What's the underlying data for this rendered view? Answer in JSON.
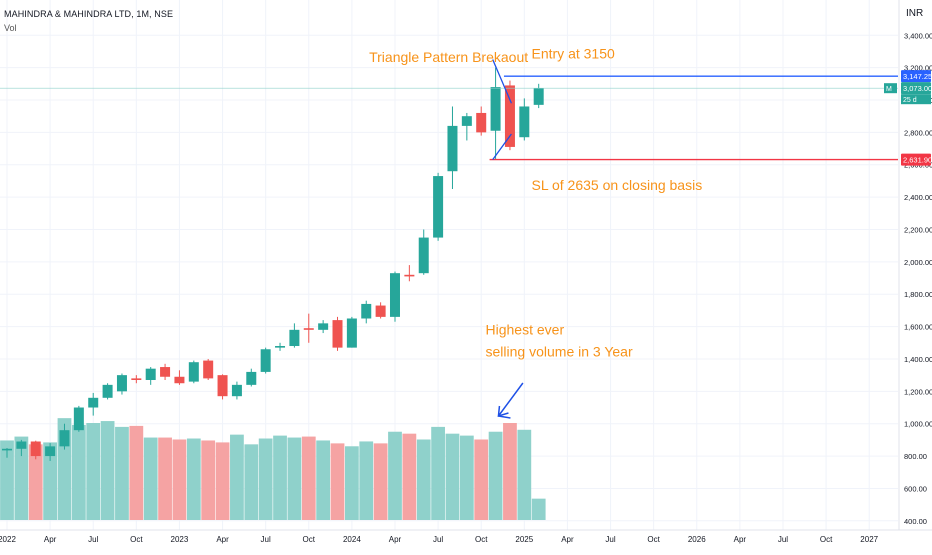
{
  "header": {
    "symbol": "MAHINDRA & MAHINDRA LTD, 1M, NSE",
    "volume_label": "Vol",
    "currency": "INR"
  },
  "colors": {
    "up": "#26a69a",
    "down": "#ef5350",
    "vol_up": "#8fd1cb",
    "vol_down": "#f5a3a3",
    "annotation": "#f7931a",
    "entry_line": "#2962ff",
    "sl_line": "#f23645",
    "pattern_line": "#1e50e6"
  },
  "chart_data": {
    "type": "candlestick",
    "interval": "1M",
    "y_axis": {
      "side": "right",
      "ticks": [
        "3,400.00",
        "3,200.00",
        "3,000.00",
        "2,800.00",
        "2,600.00",
        "2,400.00",
        "2,200.00",
        "2,000.00",
        "1,800.00",
        "1,600.00",
        "1,400.00",
        "1,200.00",
        "1,000.00",
        "800.00",
        "600.00",
        "400.00"
      ],
      "tick_values": [
        3400,
        3200,
        3000,
        2800,
        2600,
        2400,
        2200,
        2000,
        1800,
        1600,
        1400,
        1200,
        1000,
        800,
        600,
        400
      ]
    },
    "x_axis": {
      "labels": [
        "2022",
        "Apr",
        "Jul",
        "Oct",
        "2023",
        "Apr",
        "Jul",
        "Oct",
        "2024",
        "Apr",
        "Jul",
        "Oct",
        "2025",
        "Apr",
        "Jul",
        "Oct",
        "2026",
        "Apr",
        "Jul",
        "Oct",
        "2027"
      ],
      "label_month_index": [
        0,
        3,
        6,
        9,
        12,
        15,
        18,
        21,
        24,
        27,
        30,
        33,
        36,
        39,
        42,
        45,
        48,
        51,
        54,
        57,
        60
      ]
    },
    "candles": [
      {
        "o": 835,
        "h": 850,
        "l": 790,
        "c": 845
      },
      {
        "o": 845,
        "h": 900,
        "l": 800,
        "c": 890
      },
      {
        "o": 890,
        "h": 895,
        "l": 780,
        "c": 800
      },
      {
        "o": 800,
        "h": 880,
        "l": 770,
        "c": 860
      },
      {
        "o": 860,
        "h": 1000,
        "l": 840,
        "c": 960
      },
      {
        "o": 960,
        "h": 1110,
        "l": 950,
        "c": 1100
      },
      {
        "o": 1100,
        "h": 1190,
        "l": 1050,
        "c": 1160
      },
      {
        "o": 1160,
        "h": 1250,
        "l": 1150,
        "c": 1240
      },
      {
        "o": 1200,
        "h": 1310,
        "l": 1180,
        "c": 1300
      },
      {
        "o": 1280,
        "h": 1300,
        "l": 1250,
        "c": 1270
      },
      {
        "o": 1270,
        "h": 1350,
        "l": 1240,
        "c": 1340
      },
      {
        "o": 1350,
        "h": 1370,
        "l": 1270,
        "c": 1290
      },
      {
        "o": 1290,
        "h": 1330,
        "l": 1240,
        "c": 1250
      },
      {
        "o": 1260,
        "h": 1390,
        "l": 1250,
        "c": 1380
      },
      {
        "o": 1390,
        "h": 1400,
        "l": 1270,
        "c": 1280
      },
      {
        "o": 1300,
        "h": 1305,
        "l": 1150,
        "c": 1170
      },
      {
        "o": 1170,
        "h": 1260,
        "l": 1150,
        "c": 1240
      },
      {
        "o": 1240,
        "h": 1340,
        "l": 1230,
        "c": 1320
      },
      {
        "o": 1320,
        "h": 1470,
        "l": 1310,
        "c": 1460
      },
      {
        "o": 1470,
        "h": 1500,
        "l": 1450,
        "c": 1480
      },
      {
        "o": 1480,
        "h": 1620,
        "l": 1470,
        "c": 1580
      },
      {
        "o": 1590,
        "h": 1680,
        "l": 1500,
        "c": 1580
      },
      {
        "o": 1580,
        "h": 1640,
        "l": 1560,
        "c": 1620
      },
      {
        "o": 1640,
        "h": 1660,
        "l": 1450,
        "c": 1470
      },
      {
        "o": 1470,
        "h": 1660,
        "l": 1470,
        "c": 1650
      },
      {
        "o": 1650,
        "h": 1760,
        "l": 1620,
        "c": 1740
      },
      {
        "o": 1730,
        "h": 1750,
        "l": 1650,
        "c": 1660
      },
      {
        "o": 1660,
        "h": 1940,
        "l": 1630,
        "c": 1930
      },
      {
        "o": 1920,
        "h": 1980,
        "l": 1880,
        "c": 1910
      },
      {
        "o": 1930,
        "h": 2200,
        "l": 1920,
        "c": 2150
      },
      {
        "o": 2150,
        "h": 2550,
        "l": 2130,
        "c": 2530
      },
      {
        "o": 2560,
        "h": 2960,
        "l": 2450,
        "c": 2840
      },
      {
        "o": 2840,
        "h": 2920,
        "l": 2750,
        "c": 2900
      },
      {
        "o": 2920,
        "h": 2960,
        "l": 2780,
        "c": 2800
      },
      {
        "o": 2810,
        "h": 3200,
        "l": 2630,
        "c": 3080
      },
      {
        "o": 3090,
        "h": 3120,
        "l": 2690,
        "c": 2710
      },
      {
        "o": 2770,
        "h": 3010,
        "l": 2750,
        "c": 2960
      },
      {
        "o": 2970,
        "h": 3100,
        "l": 2950,
        "c": 3073
      }
    ],
    "volume_relative": [
      0.82,
      0.86,
      0.78,
      0.8,
      1.05,
      0.98,
      1.0,
      1.02,
      0.96,
      0.97,
      0.85,
      0.85,
      0.83,
      0.84,
      0.82,
      0.8,
      0.88,
      0.78,
      0.84,
      0.87,
      0.85,
      0.86,
      0.82,
      0.79,
      0.76,
      0.81,
      0.79,
      0.91,
      0.89,
      0.83,
      0.96,
      0.89,
      0.87,
      0.83,
      0.91,
      1.0,
      0.93,
      0.22
    ],
    "price_labels": [
      {
        "value": 3147.25,
        "text": "3,147.25",
        "style": "entry"
      },
      {
        "value": 3073.0,
        "text": "3,073.00",
        "style": "last"
      },
      {
        "value": 2631.9,
        "text": "2,631.90",
        "style": "sl"
      }
    ],
    "last_price_badge": {
      "prefix": "M",
      "countdown": "25 d"
    },
    "horizontal_lines": [
      {
        "value": 3147.25,
        "from_month": 35,
        "style": "entry"
      },
      {
        "value": 2631.9,
        "from_month": 34,
        "style": "sl"
      }
    ],
    "annotations": [
      {
        "text": "Triangle Pattern Brekaout",
        "x_month": 25.2,
        "y_value": 3235
      },
      {
        "text": "Entry at 3150",
        "x_month": 36.5,
        "y_value": 3255
      },
      {
        "text": "SL of 2635 on closing basis",
        "x_month": 36.5,
        "y_value": 2445
      },
      {
        "text": "Highest ever",
        "x_month": 33.3,
        "y_value": 1550
      },
      {
        "text": "selling volume in 3 Year",
        "x_month": 33.3,
        "y_value": 1415
      }
    ]
  }
}
